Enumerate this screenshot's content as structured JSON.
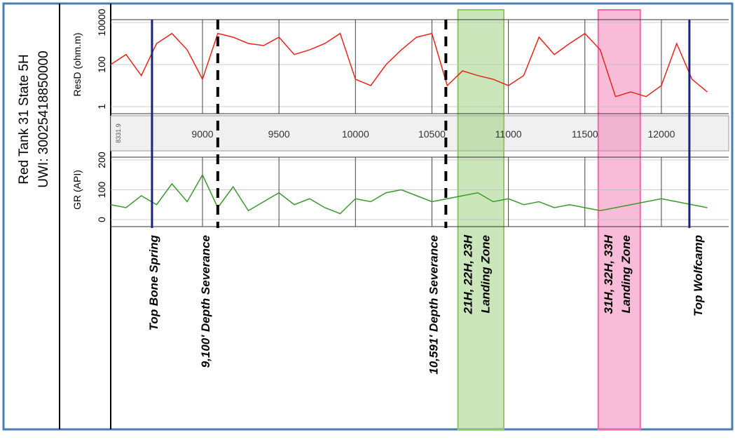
{
  "header": {
    "well_name": "Red Tank 31 State 5H",
    "uwi": "UWI: 30025418850000",
    "start_depth_label": "8331.9"
  },
  "chart_data": [
    {
      "type": "line",
      "y_label": "ResD (ohm.m)",
      "log_scale": true,
      "ylim": [
        1,
        10000
      ],
      "yticks": [
        1,
        100,
        10000
      ],
      "xlim": [
        8400,
        12440
      ],
      "xticks": [
        9000,
        9500,
        10000,
        10500,
        11000,
        11500,
        12000
      ],
      "grid": true,
      "x": [
        8400,
        8500,
        8600,
        8700,
        8800,
        8900,
        9000,
        9100,
        9200,
        9300,
        9400,
        9500,
        9600,
        9700,
        9800,
        9900,
        10000,
        10100,
        10200,
        10300,
        10400,
        10500,
        10600,
        10700,
        10800,
        10900,
        11000,
        11100,
        11200,
        11300,
        11400,
        11500,
        11600,
        11700,
        11800,
        11900,
        12000,
        12100,
        12200,
        12300
      ],
      "series": [
        {
          "color": "#e8241c",
          "values": [
            100,
            300,
            30,
            1000,
            3000,
            500,
            20,
            3000,
            2000,
            1000,
            800,
            2000,
            300,
            500,
            1000,
            3000,
            20,
            10,
            100,
            500,
            2000,
            3000,
            10,
            50,
            30,
            20,
            10,
            30,
            2000,
            300,
            1000,
            3000,
            500,
            3,
            5,
            3,
            10,
            1000,
            20,
            5
          ]
        }
      ]
    },
    {
      "type": "line",
      "y_label": "GR (API)",
      "log_scale": false,
      "ylim": [
        0,
        200
      ],
      "yticks": [
        0,
        100,
        200
      ],
      "xlim": [
        8400,
        12440
      ],
      "xticks": [
        9000,
        9500,
        10000,
        10500,
        11000,
        11500,
        12000
      ],
      "grid": true,
      "x": [
        8400,
        8500,
        8600,
        8700,
        8800,
        8900,
        9000,
        9100,
        9200,
        9300,
        9400,
        9500,
        9600,
        9700,
        9800,
        9900,
        10000,
        10100,
        10200,
        10300,
        10400,
        10500,
        10600,
        10700,
        10800,
        10900,
        11000,
        11100,
        11200,
        11300,
        11400,
        11500,
        11600,
        11700,
        11800,
        11900,
        12000,
        12100,
        12200,
        12300
      ],
      "series": [
        {
          "color": "#3a9a2a",
          "values": [
            50,
            40,
            80,
            50,
            120,
            60,
            150,
            40,
            110,
            30,
            60,
            90,
            50,
            70,
            40,
            20,
            70,
            60,
            90,
            100,
            80,
            60,
            70,
            80,
            90,
            60,
            70,
            50,
            60,
            40,
            50,
            40,
            30,
            40,
            50,
            60,
            70,
            60,
            50,
            40
          ]
        }
      ]
    }
  ],
  "markers": [
    {
      "label": "Top Bone Spring",
      "x": 8670,
      "style": "solid"
    },
    {
      "label": "9,100' Depth Severance",
      "x": 9100,
      "style": "dashed"
    },
    {
      "label": "10,591' Depth Severance",
      "x": 10591,
      "style": "dashed"
    },
    {
      "label": "Top Wolfcamp",
      "x": 12183,
      "style": "solid"
    }
  ],
  "zones": [
    {
      "lines": [
        "21H, 22H, 23H",
        "Landing Zone"
      ],
      "x": [
        10670,
        10970
      ],
      "color": "#8cc866"
    },
    {
      "lines": [
        "31H, 32H, 33H",
        "Landing Zone"
      ],
      "x": [
        11587,
        11862
      ],
      "color": "#f06aa8"
    }
  ]
}
